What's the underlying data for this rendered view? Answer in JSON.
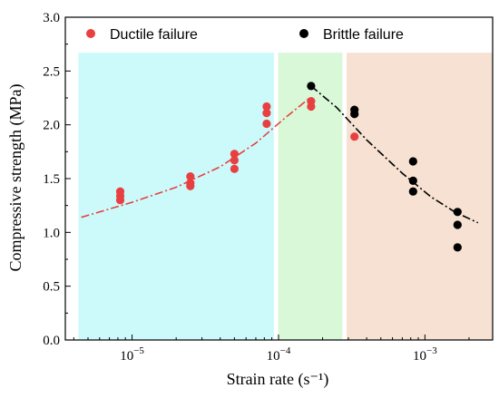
{
  "chart_data": {
    "type": "scatter",
    "title": "",
    "xlabel": "Strain rate (s⁻¹)",
    "ylabel": "Compressive strength (MPa)",
    "x_scale": "log",
    "xlim": [
      3.5e-06,
      0.0029
    ],
    "ylim": [
      0,
      3.0
    ],
    "grid": false,
    "legend_position": "top",
    "x_tick_labels": [
      {
        "value": 1e-05,
        "base": "10",
        "exp": "−5"
      },
      {
        "value": 0.0001,
        "base": "10",
        "exp": "−4"
      },
      {
        "value": 0.001,
        "base": "10",
        "exp": "−3"
      }
    ],
    "y_ticks": [
      0.0,
      0.5,
      1.0,
      1.5,
      2.0,
      2.5,
      3.0
    ],
    "y_tick_labels": [
      "0.0",
      "0.5",
      "1.0",
      "1.5",
      "2.0",
      "2.5",
      "3.0"
    ],
    "regions": [
      {
        "x_start": 4.3e-06,
        "x_end": 9.3e-05,
        "y_top": 2.67,
        "color": "#ccfafb"
      },
      {
        "x_start": 9.95e-05,
        "x_end": 0.000273,
        "y_top": 2.67,
        "color": "#d8f8d8"
      },
      {
        "x_start": 0.000292,
        "x_end": 0.0029,
        "y_top": 2.67,
        "color": "#f6e1d2"
      }
    ],
    "series": [
      {
        "name": "Ductile failure",
        "color": "#e84040",
        "points": [
          {
            "x": 8.3e-06,
            "y": 1.38
          },
          {
            "x": 8.3e-06,
            "y": 1.34
          },
          {
            "x": 8.3e-06,
            "y": 1.3
          },
          {
            "x": 2.5e-05,
            "y": 1.52
          },
          {
            "x": 2.5e-05,
            "y": 1.46
          },
          {
            "x": 2.5e-05,
            "y": 1.43
          },
          {
            "x": 5e-05,
            "y": 1.73
          },
          {
            "x": 5e-05,
            "y": 1.67
          },
          {
            "x": 5e-05,
            "y": 1.59
          },
          {
            "x": 8.3e-05,
            "y": 2.17
          },
          {
            "x": 8.3e-05,
            "y": 2.11
          },
          {
            "x": 8.3e-05,
            "y": 2.01
          },
          {
            "x": 0.000167,
            "y": 2.22
          },
          {
            "x": 0.000167,
            "y": 2.17
          },
          {
            "x": 0.00033,
            "y": 1.89
          }
        ]
      },
      {
        "name": "Brittle failure",
        "color": "#000000",
        "points": [
          {
            "x": 0.000167,
            "y": 2.36
          },
          {
            "x": 0.00033,
            "y": 2.14
          },
          {
            "x": 0.00033,
            "y": 2.1
          },
          {
            "x": 0.00083,
            "y": 1.66
          },
          {
            "x": 0.00083,
            "y": 1.48
          },
          {
            "x": 0.00083,
            "y": 1.38
          },
          {
            "x": 0.00167,
            "y": 1.19
          },
          {
            "x": 0.00167,
            "y": 1.07
          },
          {
            "x": 0.00167,
            "y": 0.86
          }
        ]
      }
    ],
    "fit_lines": [
      {
        "color": "#e84040",
        "style": "dash-dot",
        "points": [
          [
            4.5e-06,
            1.14
          ],
          [
            1e-05,
            1.28
          ],
          [
            2e-05,
            1.42
          ],
          [
            4e-05,
            1.61
          ],
          [
            7e-05,
            1.83
          ],
          [
            0.00011,
            2.06
          ],
          [
            0.00016,
            2.24
          ]
        ]
      },
      {
        "color": "#000000",
        "style": "dash-dot",
        "points": [
          [
            0.000167,
            2.36
          ],
          [
            0.00025,
            2.16
          ],
          [
            0.0004,
            1.86
          ],
          [
            0.0007,
            1.55
          ],
          [
            0.0011,
            1.33
          ],
          [
            0.0016,
            1.19
          ],
          [
            0.0023,
            1.09
          ]
        ]
      }
    ]
  }
}
